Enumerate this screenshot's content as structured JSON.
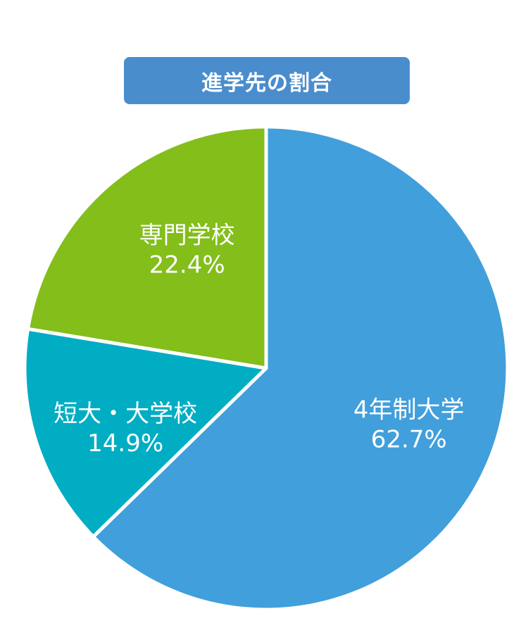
{
  "chart_data": {
    "type": "pie",
    "title": "進学先の割合",
    "slices": [
      {
        "label": "4年制大学",
        "value": 62.7,
        "value_label": "62.7%",
        "color": "#419fdc"
      },
      {
        "label": "短大・大学校",
        "value": 14.9,
        "value_label": "14.9%",
        "color": "#00adc3"
      },
      {
        "label": "専門学校",
        "value": 22.4,
        "value_label": "22.4%",
        "color": "#83be1b"
      }
    ],
    "start": "top, clockwise",
    "legend": "none"
  }
}
